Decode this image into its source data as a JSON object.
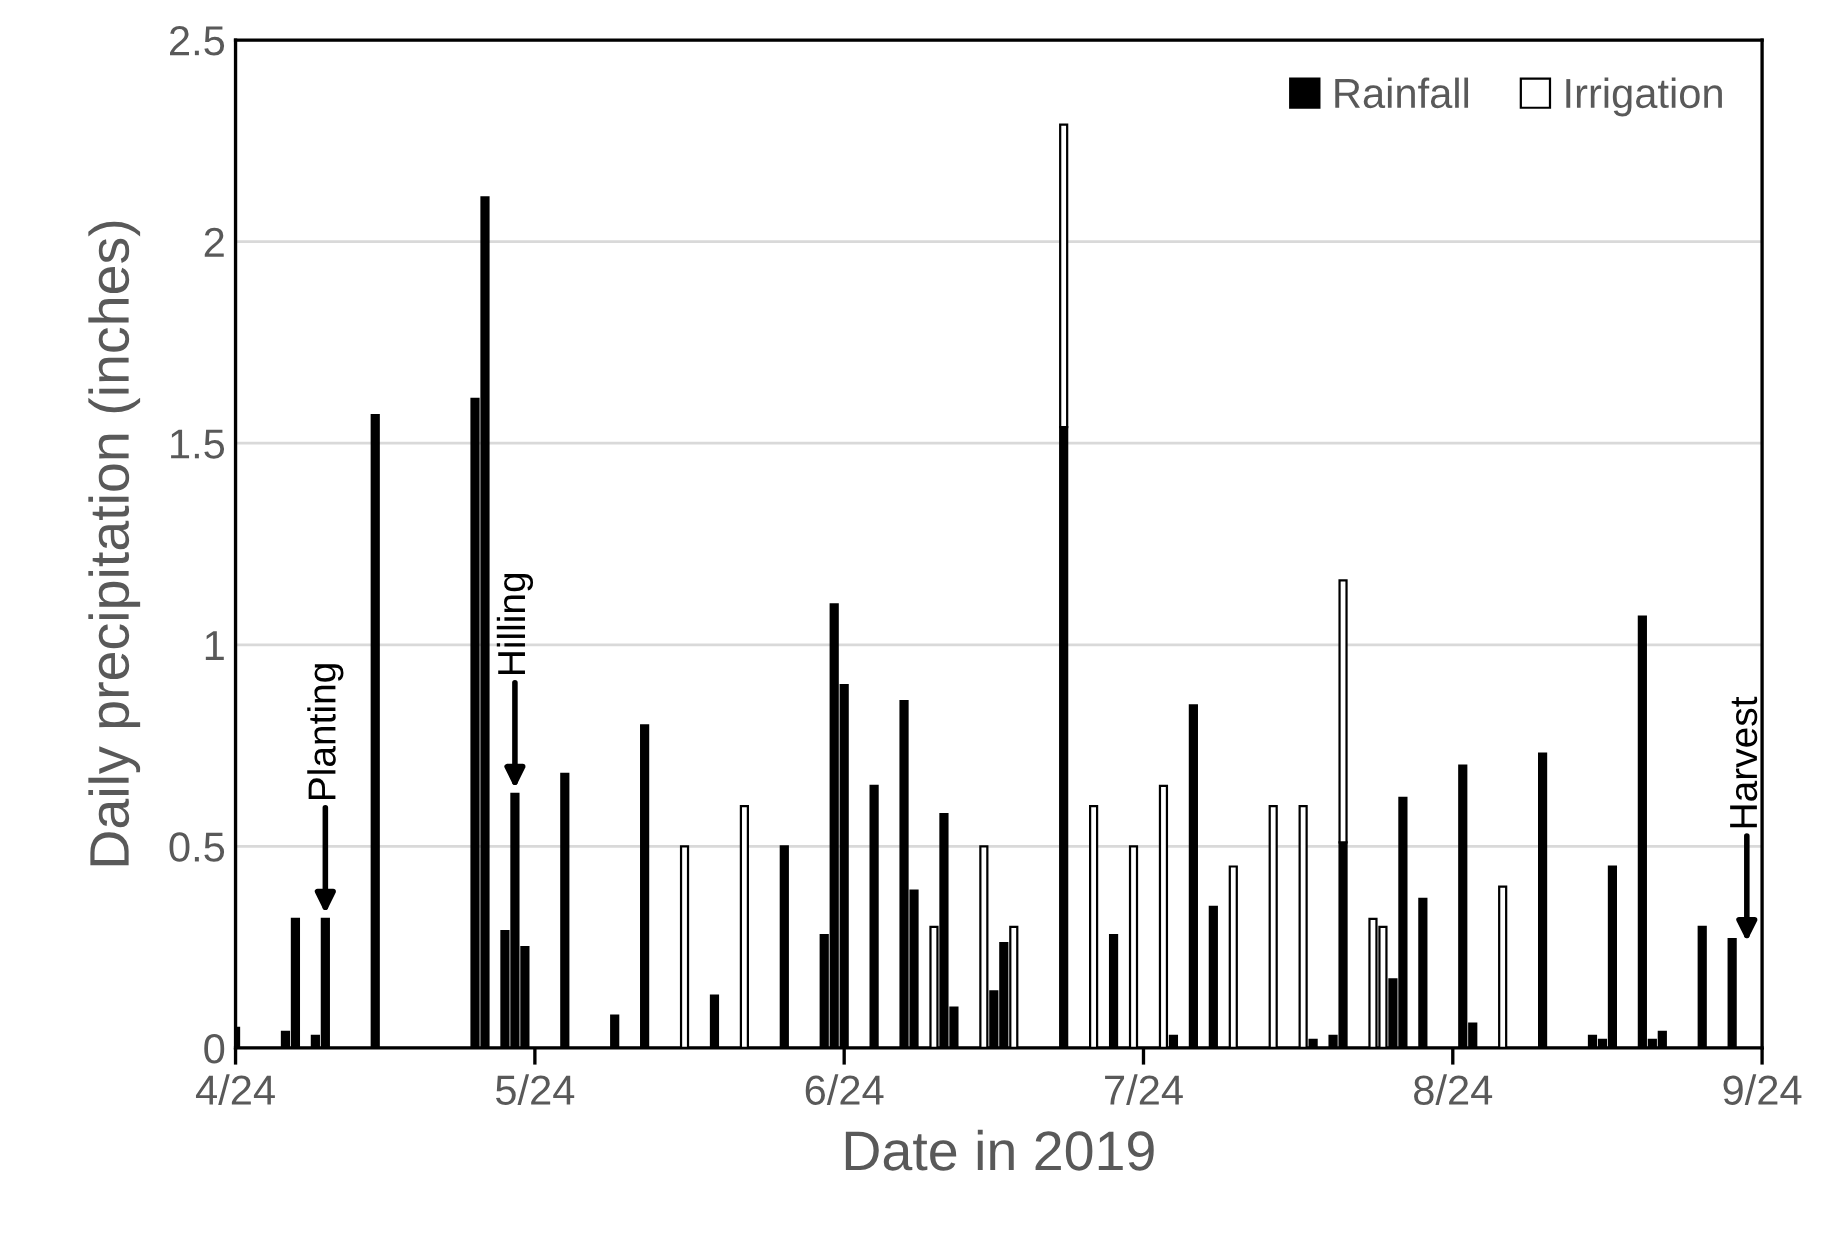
{
  "chart_data": {
    "type": "bar",
    "stacked": true,
    "xlabel": "Date in 2019",
    "ylabel": "Daily precipitation (inches)",
    "x": [
      "2019-04-24",
      "2019-04-29",
      "2019-04-30",
      "2019-05-02",
      "2019-05-03",
      "2019-05-08",
      "2019-05-18",
      "2019-05-19",
      "2019-05-21",
      "2019-05-22",
      "2019-05-23",
      "2019-05-27",
      "2019-06-01",
      "2019-06-04",
      "2019-06-08",
      "2019-06-11",
      "2019-06-14",
      "2019-06-18",
      "2019-06-22",
      "2019-06-23",
      "2019-06-24",
      "2019-06-27",
      "2019-06-30",
      "2019-07-01",
      "2019-07-03",
      "2019-07-04",
      "2019-07-05",
      "2019-07-08",
      "2019-07-09",
      "2019-07-10",
      "2019-07-11",
      "2019-07-16",
      "2019-07-19",
      "2019-07-21",
      "2019-07-23",
      "2019-07-26",
      "2019-07-27",
      "2019-07-29",
      "2019-07-31",
      "2019-08-02",
      "2019-08-06",
      "2019-08-09",
      "2019-08-10",
      "2019-08-12",
      "2019-08-13",
      "2019-08-16",
      "2019-08-17",
      "2019-08-18",
      "2019-08-19",
      "2019-08-21",
      "2019-08-25",
      "2019-08-26",
      "2019-08-29",
      "2019-09-02",
      "2019-09-07",
      "2019-09-08",
      "2019-09-09",
      "2019-09-12",
      "2019-09-13",
      "2019-09-14",
      "2019-09-18",
      "2019-09-21"
    ],
    "series": [
      {
        "name": "Rainfall",
        "color": "#000000",
        "values": [
          0.05,
          0.04,
          0.32,
          0.03,
          0.32,
          1.57,
          1.61,
          2.11,
          0.29,
          0.63,
          0.25,
          0.68,
          0.08,
          0.8,
          null,
          0.13,
          null,
          0.5,
          0.28,
          1.1,
          0.9,
          0.65,
          0.86,
          0.39,
          null,
          0.58,
          0.1,
          null,
          0.14,
          0.26,
          null,
          1.54,
          null,
          0.28,
          null,
          null,
          0.03,
          0.85,
          0.35,
          null,
          null,
          null,
          0.02,
          0.03,
          0.51,
          null,
          null,
          0.17,
          0.62,
          0.37,
          0.7,
          0.06,
          null,
          0.73,
          0.03,
          0.02,
          0.45,
          1.07,
          0.02,
          0.04,
          0.3,
          0.27
        ]
      },
      {
        "name": "Irrigation",
        "color": "#ffffff",
        "values": [
          null,
          null,
          null,
          null,
          null,
          null,
          null,
          null,
          null,
          null,
          null,
          null,
          null,
          null,
          0.5,
          null,
          0.6,
          null,
          null,
          null,
          null,
          null,
          null,
          null,
          0.3,
          null,
          null,
          0.5,
          null,
          null,
          0.3,
          0.75,
          0.6,
          null,
          0.5,
          0.65,
          null,
          null,
          null,
          0.45,
          0.6,
          0.6,
          null,
          null,
          0.65,
          0.32,
          0.3,
          null,
          null,
          null,
          null,
          null,
          0.4,
          null,
          null,
          null,
          null,
          null,
          null,
          null,
          null,
          null
        ]
      }
    ],
    "xlim": [
      "2019-04-24",
      "2019-09-24"
    ],
    "xticks": [
      {
        "value": "2019-04-24",
        "label": "4/24"
      },
      {
        "value": "2019-05-24",
        "label": "5/24"
      },
      {
        "value": "2019-06-24",
        "label": "6/24"
      },
      {
        "value": "2019-07-24",
        "label": "7/24"
      },
      {
        "value": "2019-08-24",
        "label": "8/24"
      },
      {
        "value": "2019-09-24",
        "label": "9/24"
      }
    ],
    "ylim": [
      0,
      2.5
    ],
    "yticks": [
      0,
      0.5,
      1,
      1.5,
      2,
      2.5
    ],
    "grid": "y",
    "legend": "top right",
    "annotations": [
      {
        "text": "Planting",
        "x": "2019-05-03",
        "y": 0.32
      },
      {
        "text": "Hilling",
        "x": "2019-05-22",
        "y": 0.63
      },
      "Harvest"
    ]
  }
}
